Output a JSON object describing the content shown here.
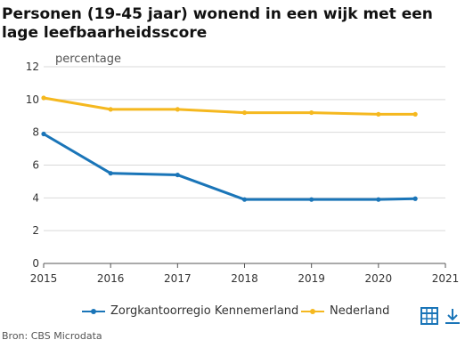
{
  "title": "Personen (19-45 jaar) wonend in een wijk met een lage leefbaarheidsscore",
  "source": "Bron: CBS Microdata",
  "colors": {
    "series1": "#1a75b8",
    "series2": "#f5b81f",
    "grid": "#d9d9d9",
    "axis": "#555555"
  },
  "icons": {
    "table": "table-icon",
    "download": "download-icon"
  },
  "chart_data": {
    "type": "line",
    "ylabel": "percentage",
    "xlim": [
      2015,
      2021
    ],
    "ylim": [
      0,
      12
    ],
    "xticks": [
      2015,
      2016,
      2017,
      2018,
      2019,
      2020,
      2021
    ],
    "yticks": [
      0,
      2,
      4,
      6,
      8,
      10,
      12
    ],
    "grid": true,
    "legend_position": "bottom",
    "series": [
      {
        "name": "Zorgkantoorregio Kennemerland",
        "x": [
          2015,
          2016,
          2017,
          2018,
          2019,
          2020,
          2020.55
        ],
        "values": [
          7.9,
          5.5,
          5.4,
          3.9,
          3.9,
          3.9,
          3.95
        ]
      },
      {
        "name": "Nederland",
        "x": [
          2015,
          2016,
          2017,
          2018,
          2019,
          2020,
          2020.55
        ],
        "values": [
          10.1,
          9.4,
          9.4,
          9.2,
          9.2,
          9.1,
          9.1
        ]
      }
    ]
  }
}
